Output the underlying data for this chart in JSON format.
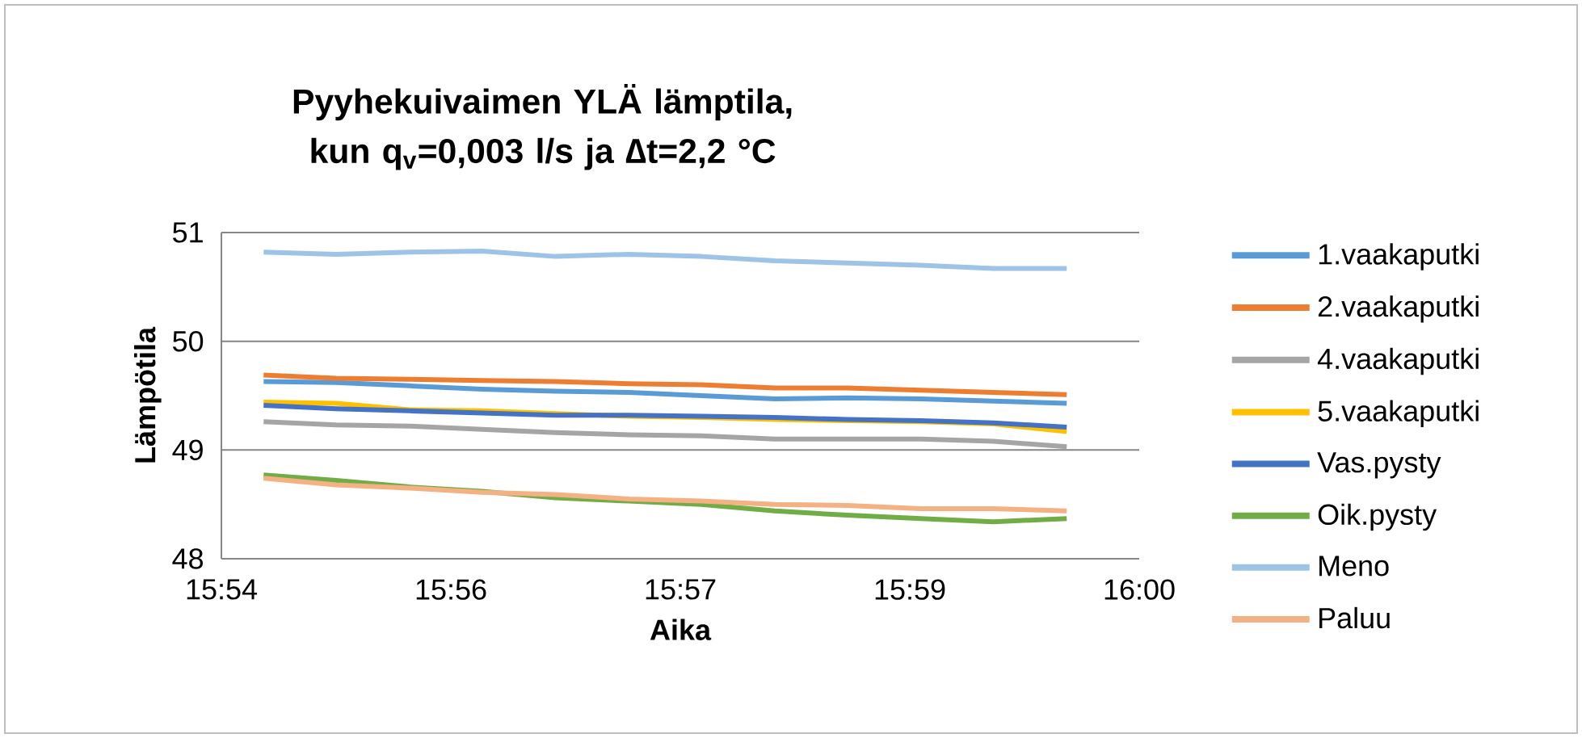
{
  "chart_data": {
    "type": "line",
    "title": "Pyyhekuivaimen YLÄ lämptila, kun q$_{v}$=0,003 l/s ja ∆t=2,2 °C",
    "xlabel": "Aika",
    "ylabel": "Lämpötila",
    "x": [
      15.9129,
      15.9208,
      15.9288,
      15.9367,
      15.9447,
      15.9527,
      15.9606,
      15.9686,
      15.9765,
      15.9845,
      15.9924,
      16.0004
    ],
    "xlim": [
      15.9083,
      16.0083
    ],
    "xticks": [
      {
        "value": 15.9083,
        "label": "15:54"
      },
      {
        "value": 15.9333,
        "label": "15:56"
      },
      {
        "value": 15.9583,
        "label": "15:57"
      },
      {
        "value": 15.9833,
        "label": "15:59"
      },
      {
        "value": 16.0083,
        "label": "16:00"
      }
    ],
    "ylim": [
      48,
      51
    ],
    "yticks": [
      48,
      49,
      50,
      51
    ],
    "grid": "y",
    "legend": "right",
    "marker": "none",
    "line_style": "solid",
    "series": [
      {
        "name": "1.vaakaputki",
        "color": "#5b9bd5",
        "values": [
          49.63,
          49.62,
          49.59,
          49.56,
          49.54,
          49.53,
          49.5,
          49.47,
          49.48,
          49.47,
          49.45,
          49.43
        ]
      },
      {
        "name": "2.vaakaputki",
        "color": "#ed7d31",
        "values": [
          49.69,
          49.66,
          49.65,
          49.64,
          49.63,
          49.61,
          49.6,
          49.57,
          49.57,
          49.55,
          49.53,
          49.51
        ]
      },
      {
        "name": "4.vaakaputki",
        "color": "#a5a5a5",
        "values": [
          49.26,
          49.23,
          49.22,
          49.19,
          49.16,
          49.14,
          49.13,
          49.1,
          49.1,
          49.1,
          49.08,
          49.03
        ]
      },
      {
        "name": "5.vaakaputki",
        "color": "#ffc000",
        "values": [
          49.44,
          49.43,
          49.37,
          49.36,
          null,
          49.31,
          49.3,
          49.28,
          null,
          49.26,
          49.24,
          49.17
        ]
      },
      {
        "name": "Vas.pysty",
        "color": "#4472c4",
        "values": [
          49.41,
          49.38,
          49.36,
          49.34,
          49.32,
          49.32,
          49.31,
          49.3,
          49.28,
          49.27,
          49.25,
          49.21
        ]
      },
      {
        "name": "Oik.pysty",
        "color": "#70ad47",
        "values": [
          48.77,
          48.72,
          48.66,
          48.62,
          48.56,
          48.53,
          48.5,
          48.44,
          48.4,
          48.37,
          48.34,
          48.37
        ]
      },
      {
        "name": "Meno",
        "color": "#9dc3e6",
        "values": [
          50.82,
          50.8,
          50.82,
          50.83,
          50.78,
          50.8,
          50.78,
          50.74,
          50.72,
          50.7,
          50.67,
          50.67
        ]
      },
      {
        "name": "Paluu",
        "color": "#f4b183",
        "values": [
          48.74,
          48.68,
          48.65,
          48.61,
          48.59,
          48.55,
          48.53,
          48.5,
          48.49,
          48.46,
          48.46,
          48.44
        ]
      }
    ]
  }
}
